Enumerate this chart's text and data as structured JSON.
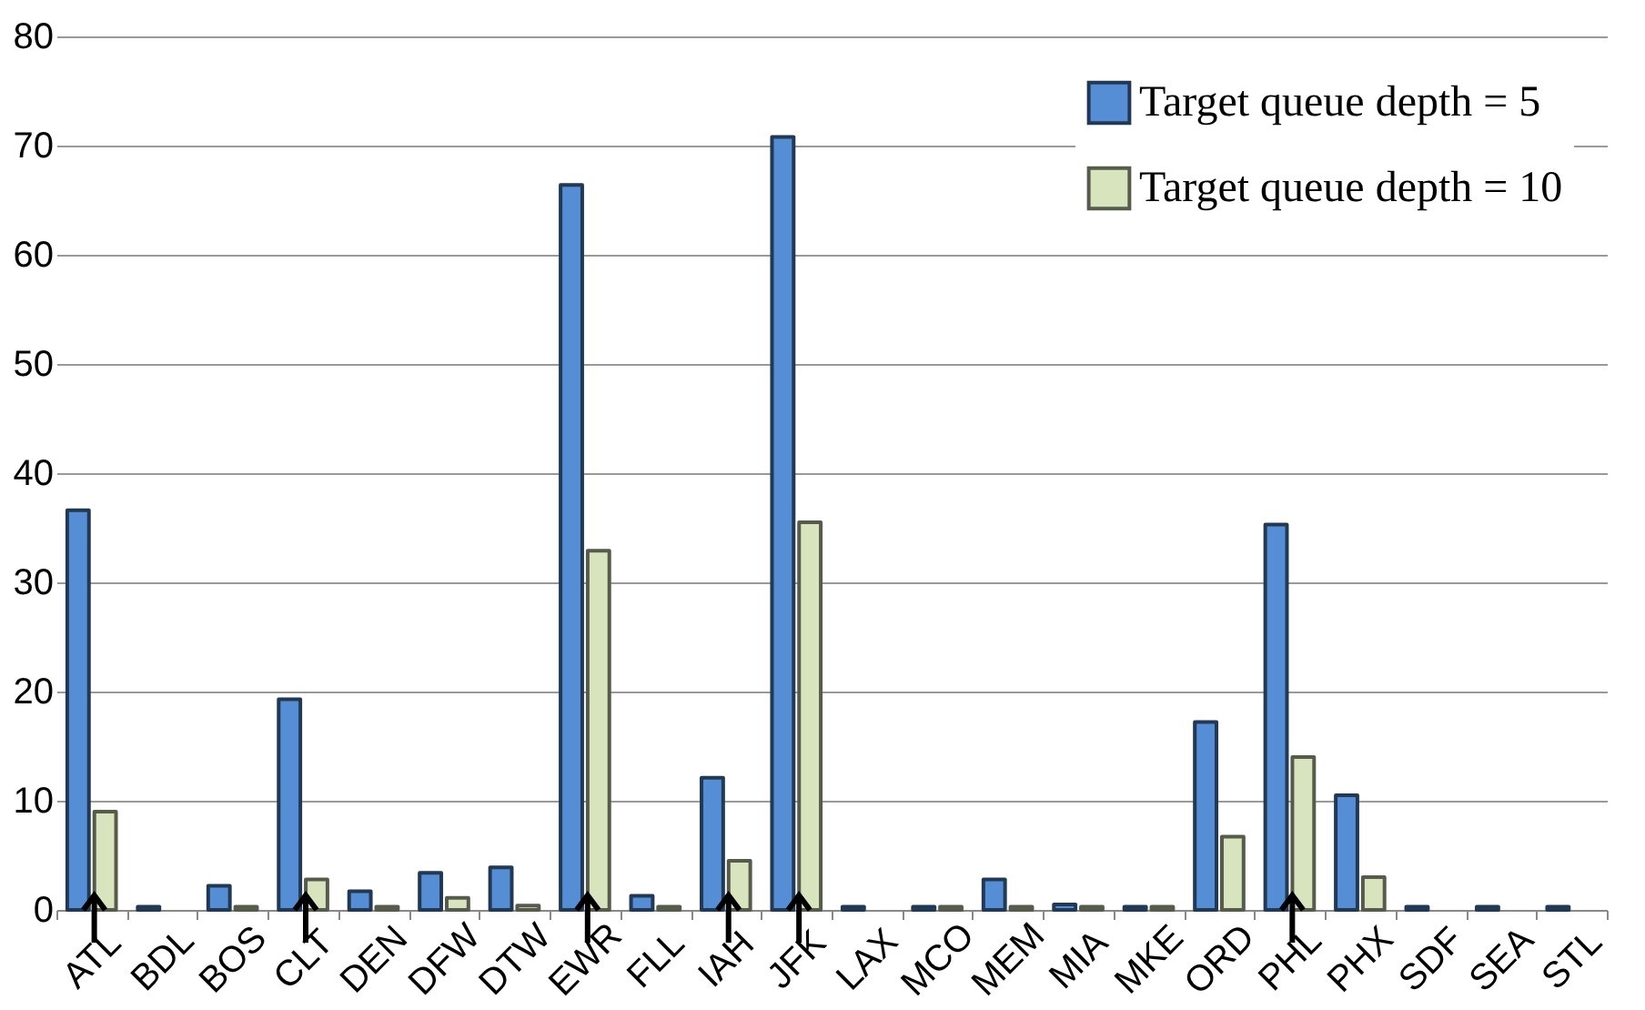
{
  "chart_data": {
    "type": "bar",
    "categories": [
      "ATL",
      "BDL",
      "BOS",
      "CLT",
      "DEN",
      "DFW",
      "DTW",
      "EWR",
      "FLL",
      "IAH",
      "JFK",
      "LAX",
      "MCO",
      "MEM",
      "MIA",
      "MKE",
      "ORD",
      "PHL",
      "PHX",
      "SDF",
      "SEA",
      "STL"
    ],
    "series": [
      {
        "name": "Target queue depth = 5",
        "color": "#558ed5",
        "values": [
          36.6,
          0.3,
          2.2,
          19.3,
          1.7,
          3.4,
          3.9,
          66.4,
          1.3,
          12.1,
          70.8,
          0.3,
          0.3,
          2.8,
          0.5,
          0.3,
          17.2,
          35.3,
          10.5,
          0.3,
          0.3,
          0.3
        ]
      },
      {
        "name": "Target queue depth = 10",
        "color": "#d7e4bd",
        "values": [
          9,
          0,
          0.3,
          2.8,
          0.3,
          1.1,
          0.4,
          32.9,
          0.3,
          4.5,
          35.5,
          0,
          0.3,
          0.3,
          0.3,
          0.3,
          6.7,
          14,
          3,
          0,
          0,
          0
        ]
      }
    ],
    "ylim": [
      0,
      80
    ],
    "yticks": [
      0,
      10,
      20,
      30,
      40,
      50,
      60,
      70,
      80
    ],
    "grid": "y",
    "legend": "top right"
  }
}
